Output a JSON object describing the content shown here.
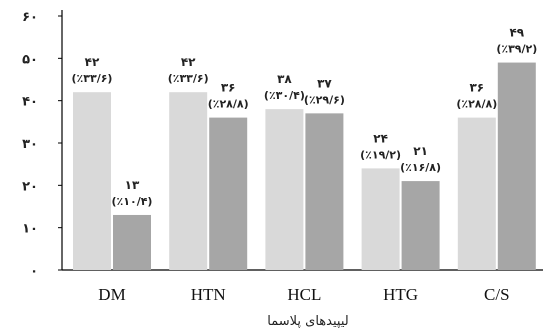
{
  "chart_data": {
    "type": "bar",
    "categories": [
      "DM",
      "HTN",
      "HCL",
      "HTG",
      "C/S"
    ],
    "series": [
      {
        "values": [
          42,
          42,
          38,
          24,
          36
        ],
        "value_labels": [
          "۴۲",
          "۴۲",
          "۳۸",
          "۲۴",
          "۳۶"
        ],
        "percent_labels": [
          "(٪۳۳/۶)",
          "(٪۳۳/۶)",
          "(٪۳۰/۴)",
          "(٪۱۹/۲)",
          "(٪۲۸/۸)"
        ],
        "color": "#d9d9d9"
      },
      {
        "values": [
          13,
          36,
          37,
          21,
          49
        ],
        "value_labels": [
          "۱۳",
          "۳۶",
          "۳۷",
          "۲۱",
          "۴۹"
        ],
        "percent_labels": [
          "(٪۱۰/۴)",
          "(٪۲۸/۸)",
          "(٪۲۹/۶)",
          "(٪۱۶/۸)",
          "(٪۳۹/۲)"
        ],
        "color": "#a6a6a6"
      }
    ],
    "xlabel": "لیپیدهای پلاسما",
    "ylabel": "",
    "ylim": [
      0,
      60
    ],
    "yticks": [
      0,
      10,
      20,
      30,
      40,
      50,
      60
    ],
    "ytick_labels": [
      "۰",
      "۱۰",
      "۲۰",
      "۳۰",
      "۴۰",
      "۵۰",
      "۶۰"
    ],
    "grid": false,
    "legend": "none"
  }
}
